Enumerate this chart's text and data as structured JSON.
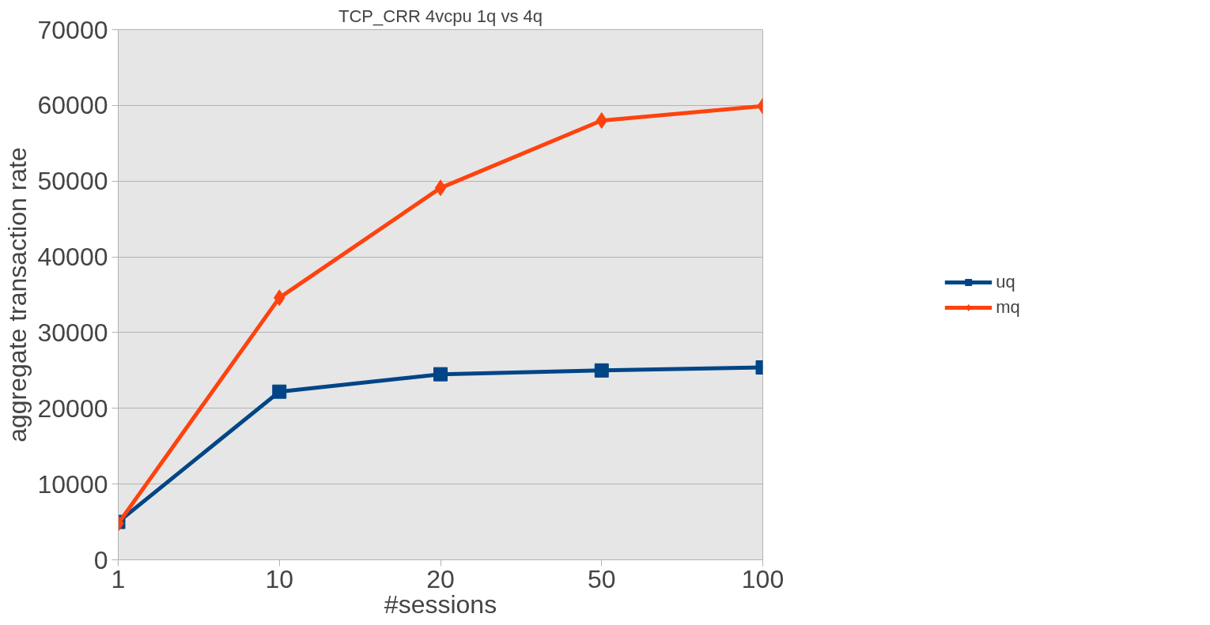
{
  "chart_data": {
    "type": "line",
    "title": "TCP_CRR 4vcpu 1q vs 4q",
    "xlabel": "#sessions",
    "ylabel": "aggregate transaction rate",
    "categories": [
      "1",
      "10",
      "20",
      "50",
      "100"
    ],
    "series": [
      {
        "name": "uq",
        "color": "#004586",
        "marker": "square",
        "values": [
          5000,
          22200,
          24500,
          25000,
          25400
        ]
      },
      {
        "name": "mq",
        "color": "#ff420e",
        "marker": "diamond",
        "values": [
          4800,
          34600,
          49100,
          58000,
          59900
        ]
      }
    ],
    "ylim": [
      0,
      70000
    ],
    "yticks": [
      0,
      10000,
      20000,
      30000,
      40000,
      50000,
      60000,
      70000
    ],
    "grid": "y",
    "legend": "right",
    "line_style": "solid"
  }
}
